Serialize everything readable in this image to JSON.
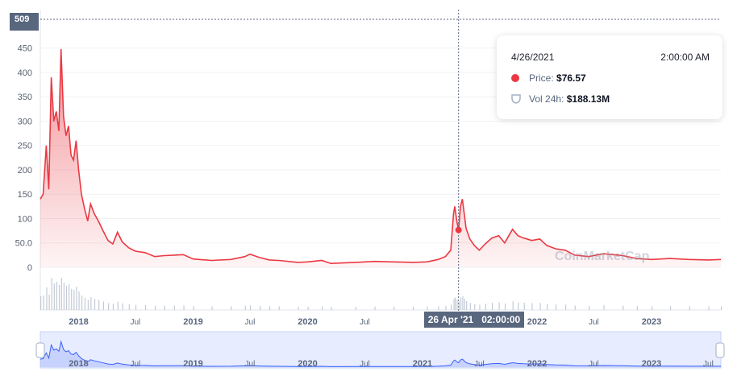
{
  "chart_data": {
    "type": "area",
    "title": "",
    "xlabel": "",
    "ylabel": "",
    "ylim": [
      0,
      509
    ],
    "yticks": [
      "0",
      "50.0",
      "100",
      "150",
      "200",
      "250",
      "300",
      "350",
      "400",
      "450"
    ],
    "y_cursor_label": "509",
    "xticks": [
      {
        "label": "2018",
        "major": true,
        "date": "2018-01-01"
      },
      {
        "label": "Jul",
        "major": false,
        "date": "2018-07-01"
      },
      {
        "label": "2019",
        "major": true,
        "date": "2019-01-01"
      },
      {
        "label": "Jul",
        "major": false,
        "date": "2019-07-01"
      },
      {
        "label": "2020",
        "major": true,
        "date": "2020-01-01"
      },
      {
        "label": "Jul",
        "major": false,
        "date": "2020-07-01"
      },
      {
        "label": "2022",
        "major": true,
        "date": "2022-01-01"
      },
      {
        "label": "Jul",
        "major": false,
        "date": "2022-07-01"
      },
      {
        "label": "2023",
        "major": true,
        "date": "2023-01-01"
      }
    ],
    "navigator_ticks": [
      {
        "label": "2018",
        "major": true,
        "date": "2018-01-01"
      },
      {
        "label": "Jul",
        "major": false,
        "date": "2018-07-01"
      },
      {
        "label": "2019",
        "major": true,
        "date": "2019-01-01"
      },
      {
        "label": "Jul",
        "major": false,
        "date": "2019-07-01"
      },
      {
        "label": "2020",
        "major": true,
        "date": "2020-01-01"
      },
      {
        "label": "Jul",
        "major": false,
        "date": "2020-07-01"
      },
      {
        "label": "2021",
        "major": true,
        "date": "2021-01-01"
      },
      {
        "label": "Jul",
        "major": false,
        "date": "2021-07-01"
      },
      {
        "label": "2022",
        "major": true,
        "date": "2022-01-01"
      },
      {
        "label": "Jul",
        "major": false,
        "date": "2022-07-01"
      },
      {
        "label": "2023",
        "major": true,
        "date": "2023-01-01"
      },
      {
        "label": "Jul",
        "major": false,
        "date": "2023-07-01"
      }
    ],
    "x_range": [
      "2017-09-01",
      "2023-08-10"
    ],
    "series": [
      {
        "color": "#ea3943",
        "points": [
          [
            "2017-09-01",
            140
          ],
          [
            "2017-09-10",
            150
          ],
          [
            "2017-09-20",
            250
          ],
          [
            "2017-09-28",
            160
          ],
          [
            "2017-10-06",
            390
          ],
          [
            "2017-10-14",
            300
          ],
          [
            "2017-10-22",
            320
          ],
          [
            "2017-10-30",
            280
          ],
          [
            "2017-11-06",
            448
          ],
          [
            "2017-11-14",
            310
          ],
          [
            "2017-11-22",
            270
          ],
          [
            "2017-11-30",
            290
          ],
          [
            "2017-12-08",
            230
          ],
          [
            "2017-12-16",
            220
          ],
          [
            "2017-12-24",
            260
          ],
          [
            "2018-01-01",
            200
          ],
          [
            "2018-01-10",
            150
          ],
          [
            "2018-01-20",
            120
          ],
          [
            "2018-01-30",
            95
          ],
          [
            "2018-02-08",
            130
          ],
          [
            "2018-02-20",
            110
          ],
          [
            "2018-03-05",
            95
          ],
          [
            "2018-03-20",
            75
          ],
          [
            "2018-04-05",
            55
          ],
          [
            "2018-04-20",
            48
          ],
          [
            "2018-05-05",
            72
          ],
          [
            "2018-05-20",
            52
          ],
          [
            "2018-06-10",
            40
          ],
          [
            "2018-07-01",
            33
          ],
          [
            "2018-08-01",
            30
          ],
          [
            "2018-09-01",
            22
          ],
          [
            "2018-10-01",
            24
          ],
          [
            "2018-11-01",
            25
          ],
          [
            "2018-12-01",
            26
          ],
          [
            "2019-01-01",
            17
          ],
          [
            "2019-03-01",
            14
          ],
          [
            "2019-05-01",
            16
          ],
          [
            "2019-06-15",
            22
          ],
          [
            "2019-07-01",
            27
          ],
          [
            "2019-08-01",
            20
          ],
          [
            "2019-09-01",
            15
          ],
          [
            "2019-10-01",
            14
          ],
          [
            "2019-12-01",
            10
          ],
          [
            "2020-01-01",
            11
          ],
          [
            "2020-02-15",
            14
          ],
          [
            "2020-03-15",
            8
          ],
          [
            "2020-06-01",
            10
          ],
          [
            "2020-08-01",
            12
          ],
          [
            "2020-10-01",
            11
          ],
          [
            "2020-12-01",
            10
          ],
          [
            "2021-01-15",
            11
          ],
          [
            "2021-02-20",
            16
          ],
          [
            "2021-03-15",
            22
          ],
          [
            "2021-04-01",
            35
          ],
          [
            "2021-04-10",
            110
          ],
          [
            "2021-04-14",
            125
          ],
          [
            "2021-04-20",
            96
          ],
          [
            "2021-04-26",
            76.57
          ],
          [
            "2021-05-02",
            125
          ],
          [
            "2021-05-08",
            140
          ],
          [
            "2021-05-14",
            110
          ],
          [
            "2021-05-20",
            80
          ],
          [
            "2021-06-01",
            58
          ],
          [
            "2021-06-15",
            45
          ],
          [
            "2021-07-01",
            35
          ],
          [
            "2021-07-20",
            48
          ],
          [
            "2021-08-10",
            60
          ],
          [
            "2021-09-01",
            65
          ],
          [
            "2021-09-20",
            50
          ],
          [
            "2021-10-15",
            78
          ],
          [
            "2021-11-01",
            65
          ],
          [
            "2021-11-20",
            60
          ],
          [
            "2021-12-15",
            55
          ],
          [
            "2022-01-10",
            58
          ],
          [
            "2022-02-01",
            45
          ],
          [
            "2022-03-01",
            38
          ],
          [
            "2022-04-01",
            35
          ],
          [
            "2022-05-01",
            25
          ],
          [
            "2022-06-15",
            22
          ],
          [
            "2022-08-01",
            28
          ],
          [
            "2022-10-01",
            24
          ],
          [
            "2022-11-15",
            18
          ],
          [
            "2023-01-01",
            16
          ],
          [
            "2023-03-01",
            18
          ],
          [
            "2023-05-01",
            16
          ],
          [
            "2023-07-01",
            15
          ],
          [
            "2023-08-10",
            16
          ]
        ]
      }
    ],
    "cursor": {
      "date": "2021-04-26",
      "value": 76.57
    },
    "x_cursor_label": "26 Apr '21   02:00:00",
    "legend": "none",
    "grid": true
  },
  "tooltip": {
    "date": "4/26/2021",
    "time": "2:00:00 AM",
    "price_label": "Price:",
    "price_value": "$76.57",
    "vol_label": "Vol 24h:",
    "vol_value": "$188.13M"
  },
  "watermark": "CoinMarketCap",
  "colors": {
    "line": "#ea3943",
    "navigator_line": "#3861fb",
    "axis_text": "#58667e"
  }
}
